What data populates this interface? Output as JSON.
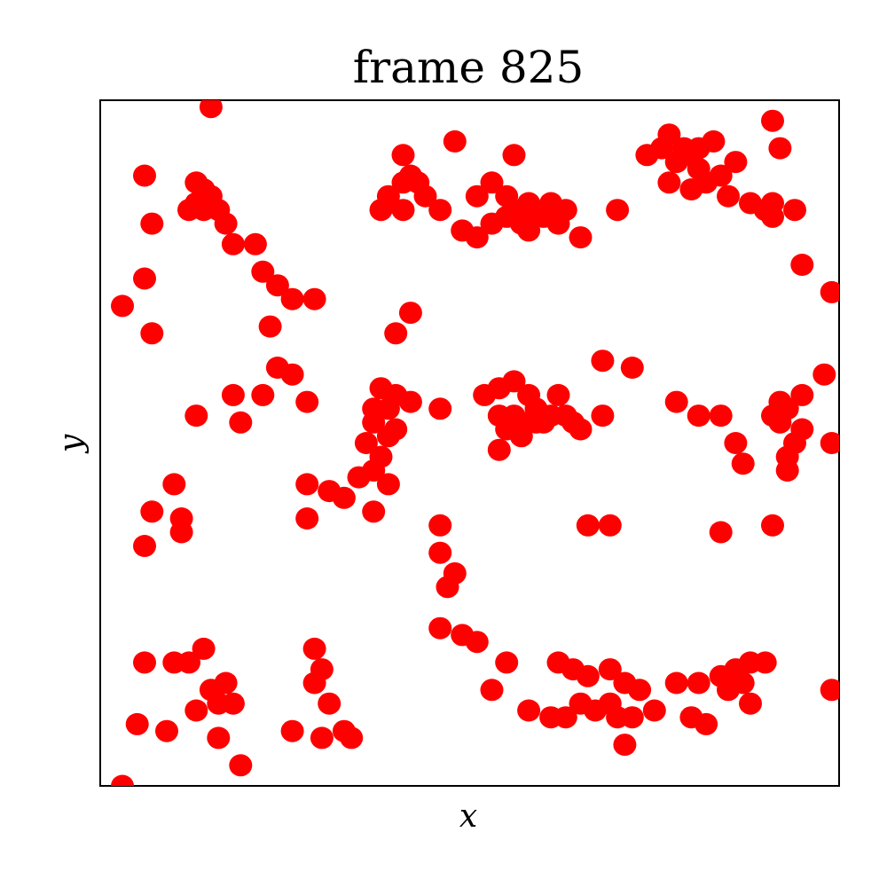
{
  "chart_data": {
    "type": "scatter",
    "title": "frame 825",
    "xlabel": "x",
    "ylabel": "y",
    "xlim": [
      0,
      1
    ],
    "ylim": [
      0,
      1
    ],
    "grid": false,
    "ticks": false,
    "marker_color": "#ff0000",
    "series": [
      {
        "points": [
          [
            0.03,
            0.7
          ],
          [
            0.06,
            0.35
          ],
          [
            0.03,
            0.0
          ],
          [
            0.09,
            0.08
          ],
          [
            0.06,
            0.89
          ],
          [
            0.07,
            0.82
          ],
          [
            0.06,
            0.74
          ],
          [
            0.07,
            0.66
          ],
          [
            0.13,
            0.54
          ],
          [
            0.1,
            0.44
          ],
          [
            0.07,
            0.4
          ],
          [
            0.11,
            0.39
          ],
          [
            0.11,
            0.37
          ],
          [
            0.13,
            0.88
          ],
          [
            0.14,
            0.87
          ],
          [
            0.15,
            0.86
          ],
          [
            0.13,
            0.85
          ],
          [
            0.12,
            0.84
          ],
          [
            0.14,
            0.84
          ],
          [
            0.16,
            0.84
          ],
          [
            0.17,
            0.82
          ],
          [
            0.15,
            0.99
          ],
          [
            0.18,
            0.79
          ],
          [
            0.21,
            0.79
          ],
          [
            0.22,
            0.75
          ],
          [
            0.24,
            0.73
          ],
          [
            0.26,
            0.71
          ],
          [
            0.29,
            0.71
          ],
          [
            0.23,
            0.67
          ],
          [
            0.24,
            0.61
          ],
          [
            0.26,
            0.6
          ],
          [
            0.18,
            0.57
          ],
          [
            0.22,
            0.57
          ],
          [
            0.19,
            0.53
          ],
          [
            0.28,
            0.56
          ],
          [
            0.06,
            0.18
          ],
          [
            0.1,
            0.18
          ],
          [
            0.12,
            0.18
          ],
          [
            0.14,
            0.2
          ],
          [
            0.15,
            0.14
          ],
          [
            0.17,
            0.15
          ],
          [
            0.16,
            0.12
          ],
          [
            0.18,
            0.12
          ],
          [
            0.13,
            0.11
          ],
          [
            0.16,
            0.07
          ],
          [
            0.05,
            0.09
          ],
          [
            0.19,
            0.03
          ],
          [
            0.29,
            0.2
          ],
          [
            0.3,
            0.17
          ],
          [
            0.29,
            0.15
          ],
          [
            0.31,
            0.12
          ],
          [
            0.33,
            0.08
          ],
          [
            0.26,
            0.08
          ],
          [
            0.3,
            0.07
          ],
          [
            0.34,
            0.07
          ],
          [
            0.28,
            0.44
          ],
          [
            0.31,
            0.43
          ],
          [
            0.33,
            0.42
          ],
          [
            0.35,
            0.45
          ],
          [
            0.37,
            0.46
          ],
          [
            0.38,
            0.48
          ],
          [
            0.36,
            0.5
          ],
          [
            0.39,
            0.51
          ],
          [
            0.4,
            0.52
          ],
          [
            0.37,
            0.53
          ],
          [
            0.39,
            0.55
          ],
          [
            0.42,
            0.56
          ],
          [
            0.37,
            0.55
          ],
          [
            0.4,
            0.57
          ],
          [
            0.38,
            0.58
          ],
          [
            0.39,
            0.44
          ],
          [
            0.37,
            0.4
          ],
          [
            0.28,
            0.39
          ],
          [
            0.38,
            0.84
          ],
          [
            0.39,
            0.85
          ],
          [
            0.41,
            0.84
          ],
          [
            0.39,
            0.86
          ],
          [
            0.41,
            0.88
          ],
          [
            0.43,
            0.88
          ],
          [
            0.42,
            0.89
          ],
          [
            0.44,
            0.86
          ],
          [
            0.46,
            0.84
          ],
          [
            0.41,
            0.92
          ],
          [
            0.48,
            0.94
          ],
          [
            0.4,
            0.66
          ],
          [
            0.42,
            0.69
          ],
          [
            0.46,
            0.55
          ],
          [
            0.51,
            0.86
          ],
          [
            0.53,
            0.88
          ],
          [
            0.55,
            0.86
          ],
          [
            0.56,
            0.84
          ],
          [
            0.58,
            0.85
          ],
          [
            0.61,
            0.85
          ],
          [
            0.63,
            0.84
          ],
          [
            0.59,
            0.83
          ],
          [
            0.55,
            0.83
          ],
          [
            0.53,
            0.82
          ],
          [
            0.57,
            0.82
          ],
          [
            0.6,
            0.83
          ],
          [
            0.62,
            0.82
          ],
          [
            0.58,
            0.81
          ],
          [
            0.51,
            0.8
          ],
          [
            0.49,
            0.81
          ],
          [
            0.65,
            0.8
          ],
          [
            0.56,
            0.92
          ],
          [
            0.7,
            0.84
          ],
          [
            0.74,
            0.92
          ],
          [
            0.77,
            0.95
          ],
          [
            0.76,
            0.93
          ],
          [
            0.79,
            0.93
          ],
          [
            0.8,
            0.92
          ],
          [
            0.81,
            0.93
          ],
          [
            0.83,
            0.94
          ],
          [
            0.78,
            0.91
          ],
          [
            0.81,
            0.9
          ],
          [
            0.84,
            0.89
          ],
          [
            0.77,
            0.88
          ],
          [
            0.8,
            0.87
          ],
          [
            0.82,
            0.88
          ],
          [
            0.86,
            0.91
          ],
          [
            0.85,
            0.86
          ],
          [
            0.88,
            0.85
          ],
          [
            0.9,
            0.84
          ],
          [
            0.91,
            0.85
          ],
          [
            0.91,
            0.83
          ],
          [
            0.94,
            0.84
          ],
          [
            0.92,
            0.93
          ],
          [
            0.91,
            0.97
          ],
          [
            0.95,
            0.76
          ],
          [
            0.99,
            0.72
          ],
          [
            0.68,
            0.62
          ],
          [
            0.72,
            0.61
          ],
          [
            0.52,
            0.57
          ],
          [
            0.54,
            0.58
          ],
          [
            0.56,
            0.59
          ],
          [
            0.58,
            0.57
          ],
          [
            0.62,
            0.57
          ],
          [
            0.59,
            0.55
          ],
          [
            0.56,
            0.54
          ],
          [
            0.54,
            0.54
          ],
          [
            0.57,
            0.53
          ],
          [
            0.59,
            0.53
          ],
          [
            0.61,
            0.54
          ],
          [
            0.63,
            0.54
          ],
          [
            0.64,
            0.53
          ],
          [
            0.55,
            0.52
          ],
          [
            0.57,
            0.51
          ],
          [
            0.6,
            0.53
          ],
          [
            0.65,
            0.52
          ],
          [
            0.54,
            0.49
          ],
          [
            0.68,
            0.54
          ],
          [
            0.78,
            0.56
          ],
          [
            0.81,
            0.54
          ],
          [
            0.84,
            0.54
          ],
          [
            0.86,
            0.5
          ],
          [
            0.91,
            0.54
          ],
          [
            0.92,
            0.56
          ],
          [
            0.95,
            0.57
          ],
          [
            0.93,
            0.55
          ],
          [
            0.95,
            0.52
          ],
          [
            0.98,
            0.6
          ],
          [
            0.92,
            0.53
          ],
          [
            0.94,
            0.5
          ],
          [
            0.93,
            0.48
          ],
          [
            0.99,
            0.5
          ],
          [
            0.93,
            0.46
          ],
          [
            0.87,
            0.47
          ],
          [
            0.46,
            0.38
          ],
          [
            0.46,
            0.34
          ],
          [
            0.48,
            0.31
          ],
          [
            0.47,
            0.29
          ],
          [
            0.66,
            0.38
          ],
          [
            0.69,
            0.38
          ],
          [
            0.84,
            0.37
          ],
          [
            0.91,
            0.38
          ],
          [
            0.46,
            0.23
          ],
          [
            0.49,
            0.22
          ],
          [
            0.51,
            0.21
          ],
          [
            0.55,
            0.18
          ],
          [
            0.62,
            0.18
          ],
          [
            0.64,
            0.17
          ],
          [
            0.66,
            0.16
          ],
          [
            0.69,
            0.17
          ],
          [
            0.71,
            0.15
          ],
          [
            0.73,
            0.14
          ],
          [
            0.78,
            0.15
          ],
          [
            0.81,
            0.15
          ],
          [
            0.84,
            0.16
          ],
          [
            0.86,
            0.17
          ],
          [
            0.88,
            0.18
          ],
          [
            0.9,
            0.18
          ],
          [
            0.87,
            0.15
          ],
          [
            0.85,
            0.14
          ],
          [
            0.88,
            0.12
          ],
          [
            0.53,
            0.14
          ],
          [
            0.58,
            0.11
          ],
          [
            0.61,
            0.1
          ],
          [
            0.63,
            0.1
          ],
          [
            0.65,
            0.12
          ],
          [
            0.67,
            0.11
          ],
          [
            0.69,
            0.12
          ],
          [
            0.7,
            0.1
          ],
          [
            0.72,
            0.1
          ],
          [
            0.75,
            0.11
          ],
          [
            0.8,
            0.1
          ],
          [
            0.82,
            0.09
          ],
          [
            0.71,
            0.06
          ],
          [
            0.99,
            0.14
          ]
        ]
      }
    ]
  }
}
